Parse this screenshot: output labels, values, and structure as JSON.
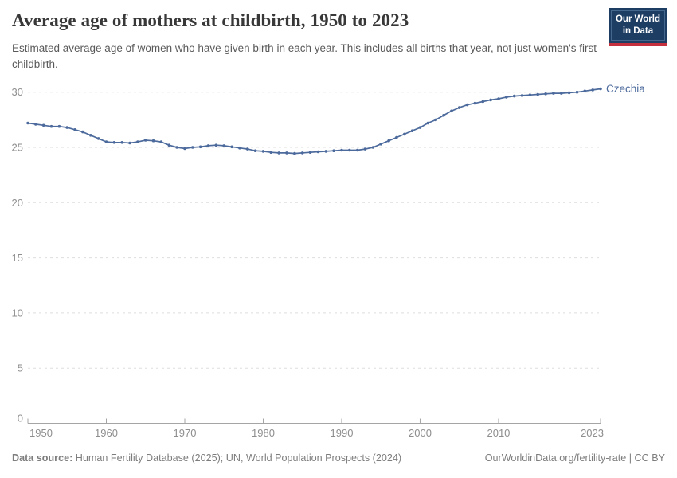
{
  "header": {
    "title": "Average age of mothers at childbirth, 1950 to 2023",
    "subtitle": "Estimated average age of women who have given birth in each year. This includes all births that year, not just women's first childbirth."
  },
  "logo": {
    "line1": "Our World",
    "line2": "in Data"
  },
  "chart_data": {
    "type": "line",
    "title": "Average age of mothers at childbirth, 1950 to 2023",
    "xlabel": "",
    "ylabel": "",
    "xlim": [
      1950,
      2023
    ],
    "ylim": [
      0,
      30
    ],
    "yticks": [
      0,
      5,
      10,
      15,
      20,
      25,
      30
    ],
    "xticks": [
      1950,
      1960,
      1970,
      1980,
      1990,
      2000,
      2010,
      2023
    ],
    "grid": "horizontal-dashed",
    "legend": "end-of-line-label",
    "series": [
      {
        "name": "Czechia",
        "x": [
          1950,
          1951,
          1952,
          1953,
          1954,
          1955,
          1956,
          1957,
          1958,
          1959,
          1960,
          1961,
          1962,
          1963,
          1964,
          1965,
          1966,
          1967,
          1968,
          1969,
          1970,
          1971,
          1972,
          1973,
          1974,
          1975,
          1976,
          1977,
          1978,
          1979,
          1980,
          1981,
          1982,
          1983,
          1984,
          1985,
          1986,
          1987,
          1988,
          1989,
          1990,
          1991,
          1992,
          1993,
          1994,
          1995,
          1996,
          1997,
          1998,
          1999,
          2000,
          2001,
          2002,
          2003,
          2004,
          2005,
          2006,
          2007,
          2008,
          2009,
          2010,
          2011,
          2012,
          2013,
          2014,
          2015,
          2016,
          2017,
          2018,
          2019,
          2020,
          2021,
          2022,
          2023
        ],
        "values": [
          27.2,
          27.1,
          27.0,
          26.9,
          26.9,
          26.8,
          26.6,
          26.4,
          26.1,
          25.8,
          25.5,
          25.45,
          25.45,
          25.4,
          25.5,
          25.65,
          25.6,
          25.5,
          25.2,
          25.0,
          24.9,
          25.0,
          25.05,
          25.15,
          25.2,
          25.15,
          25.05,
          24.95,
          24.85,
          24.7,
          24.65,
          24.55,
          24.5,
          24.5,
          24.45,
          24.5,
          24.55,
          24.6,
          24.65,
          24.7,
          24.75,
          24.75,
          24.75,
          24.85,
          25.0,
          25.3,
          25.6,
          25.9,
          26.2,
          26.5,
          26.8,
          27.2,
          27.5,
          27.9,
          28.3,
          28.6,
          28.85,
          29.0,
          29.15,
          29.3,
          29.4,
          29.55,
          29.65,
          29.7,
          29.75,
          29.8,
          29.85,
          29.9,
          29.9,
          29.95,
          30.0,
          30.1,
          30.2,
          30.3
        ]
      }
    ],
    "colors": {
      "line": "#4c6a9c",
      "entity_label": "#4c6a9c",
      "grid": "#dedede",
      "axis": "#a5a5a5",
      "tick_label": "#8e8e8e"
    }
  },
  "footer": {
    "source_label": "Data source:",
    "source_text": "Human Fertility Database (2025); UN, World Population Prospects (2024)",
    "license_text": "OurWorldinData.org/fertility-rate | CC BY"
  }
}
